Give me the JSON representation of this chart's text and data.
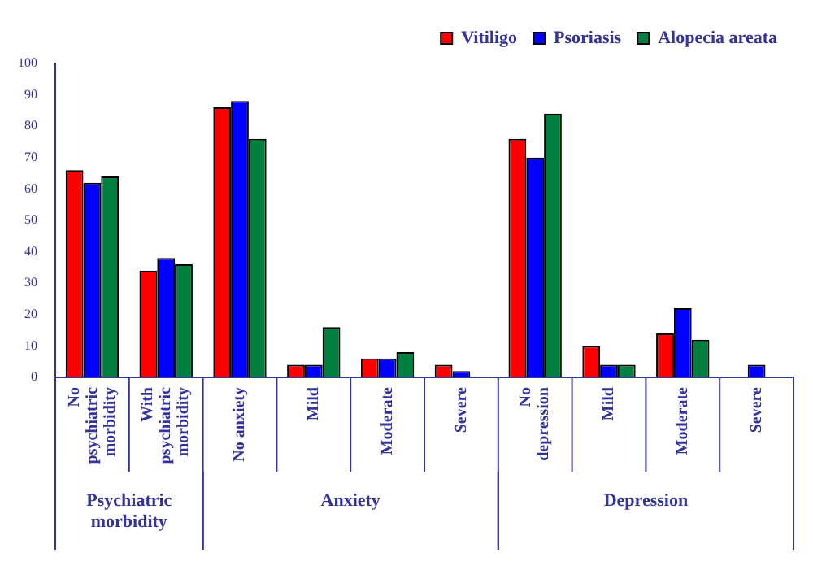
{
  "chart_data": {
    "type": "bar",
    "categories": [
      "No psychiatric morbidity",
      "With psychiatric morbidity",
      "No anxiety",
      "Mild",
      "Moderate",
      "Severe",
      "No depression",
      "Mild",
      "Moderate",
      "Severe"
    ],
    "series": [
      {
        "name": "Vitiligo",
        "color": "#ff0000",
        "values": [
          66,
          34,
          86,
          4,
          6,
          4,
          76,
          10,
          14,
          0
        ]
      },
      {
        "name": "Psoriasis",
        "color": "#0000ff",
        "values": [
          62,
          38,
          88,
          4,
          6,
          2,
          70,
          4,
          22,
          4
        ]
      },
      {
        "name": "Alopecia areata",
        "color": "#008040",
        "values": [
          64,
          36,
          76,
          16,
          8,
          0,
          84,
          4,
          12,
          0
        ]
      }
    ],
    "ylim": [
      0,
      100
    ],
    "yticks": [
      0,
      10,
      20,
      30,
      40,
      50,
      60,
      70,
      80,
      90,
      100
    ],
    "grid": false,
    "legend": "top right",
    "annotations": [
      "Psychiatric morbidity",
      "Anxiety",
      "Depression"
    ]
  }
}
